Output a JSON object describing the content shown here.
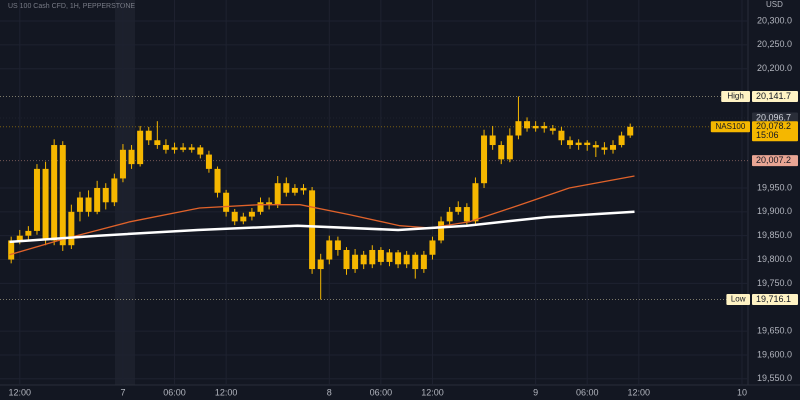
{
  "chart_data": {
    "type": "candlestick",
    "title": "US 100 Cash CFD, 1H, PEPPERSTONE",
    "currency": "USD",
    "color": "#f5b700",
    "xlim": [
      9.7,
      96.7
    ],
    "ylim": [
      19537,
      20344
    ],
    "grid": true,
    "xticks": [
      {
        "value": 12,
        "label": "12:00"
      },
      {
        "value": 24,
        "label": "7"
      },
      {
        "value": 30,
        "label": "06:00"
      },
      {
        "value": 36,
        "label": "12:00"
      },
      {
        "value": 48,
        "label": "8"
      },
      {
        "value": 54,
        "label": "06:00"
      },
      {
        "value": 60,
        "label": "12:00"
      },
      {
        "value": 72,
        "label": "9"
      },
      {
        "value": 78,
        "label": "06:00"
      },
      {
        "value": 84,
        "label": "12:00"
      },
      {
        "value": 96,
        "label": "10"
      }
    ],
    "yticks": [
      {
        "value": 20300,
        "label": "20,300.0"
      },
      {
        "value": 20250,
        "label": "20,250.0"
      },
      {
        "value": 20200,
        "label": "20,200.0"
      },
      {
        "value": 19950,
        "label": "19,950.0"
      },
      {
        "value": 19900,
        "label": "19,900.0"
      },
      {
        "value": 19850,
        "label": "19,850.0"
      },
      {
        "value": 19800,
        "label": "19,800.0"
      },
      {
        "value": 19750,
        "label": "19,750.0"
      },
      {
        "value": 19650,
        "label": "19,650.0"
      },
      {
        "value": 19600,
        "label": "19,600.0"
      },
      {
        "value": 19550,
        "label": "19,550.0"
      }
    ],
    "x": [
      11,
      12,
      13,
      14,
      15,
      16,
      17,
      18,
      19,
      20,
      21,
      22,
      23,
      24,
      25,
      26,
      27,
      28,
      29,
      30,
      31,
      32,
      33,
      34,
      35,
      36,
      37,
      38,
      39,
      40,
      41,
      42,
      43,
      44,
      45,
      46,
      47,
      48,
      49,
      50,
      51,
      52,
      53,
      54,
      55,
      56,
      57,
      58,
      59,
      60,
      61,
      62,
      63,
      64,
      65,
      66,
      67,
      68,
      69,
      70,
      71,
      72,
      73,
      74,
      75,
      76,
      77,
      78,
      79,
      80,
      81,
      82,
      83
    ],
    "open": [
      19800,
      19840,
      19850,
      19860,
      19990,
      19840,
      20040,
      19830,
      19900,
      19930,
      19900,
      19950,
      19920,
      19970,
      20030,
      20000,
      20070,
      20050,
      20040,
      20030,
      20035,
      20030,
      20035,
      20020,
      19990,
      19940,
      19900,
      19880,
      19890,
      19900,
      19920,
      19915,
      19960,
      19940,
      19950,
      19945,
      19780,
      19800,
      19840,
      19820,
      19780,
      19810,
      19790,
      19820,
      19795,
      19815,
      19790,
      19810,
      19780,
      19810,
      19840,
      19880,
      19900,
      19910,
      19880,
      19960,
      20060,
      20040,
      20010,
      20060,
      20090,
      20075,
      20080,
      20075,
      20070,
      20050,
      20040,
      20045,
      20040,
      20035,
      20030,
      20040,
      20060
    ],
    "high": [
      19848,
      19862,
      19870,
      20000,
      20005,
      20052,
      20048,
      19915,
      19942,
      19945,
      19965,
      19960,
      19980,
      20042,
      20040,
      20080,
      20078,
      20090,
      20052,
      20045,
      20044,
      20042,
      20040,
      20028,
      19995,
      19946,
      19906,
      19898,
      19908,
      19930,
      19930,
      19975,
      19972,
      19958,
      19958,
      19952,
      19812,
      19850,
      19848,
      19826,
      19822,
      19818,
      19830,
      19826,
      19822,
      19820,
      19818,
      19815,
      19818,
      19848,
      19890,
      19910,
      19922,
      19918,
      19972,
      20072,
      20080,
      20048,
      20075,
      20141.7,
      20098,
      20090,
      20088,
      20082,
      20078,
      20058,
      20052,
      20050,
      20048,
      20046,
      20050,
      20068,
      20085
    ],
    "low": [
      19792,
      19832,
      19840,
      19852,
      19830,
      19830,
      19818,
      19822,
      19880,
      19890,
      19895,
      19905,
      19912,
      19962,
      19990,
      19995,
      20040,
      20032,
      20022,
      20022,
      20025,
      20024,
      20012,
      19982,
      19930,
      19890,
      19872,
      19874,
      19882,
      19894,
      19905,
      19908,
      19932,
      19934,
      19936,
      19770,
      19716.1,
      19790,
      19808,
      19768,
      19772,
      19780,
      19782,
      19788,
      19786,
      19782,
      19782,
      19760,
      19772,
      19800,
      19834,
      19872,
      19894,
      19872,
      19874,
      19950,
      20030,
      20000,
      20004,
      20052,
      20068,
      20068,
      20066,
      20062,
      20040,
      20032,
      20030,
      20028,
      20015,
      20020,
      20022,
      20035,
      20055
    ],
    "close": [
      19840,
      19850,
      19860,
      19990,
      19840,
      20040,
      19830,
      19900,
      19930,
      19900,
      19950,
      19920,
      19970,
      20030,
      20000,
      20070,
      20050,
      20040,
      20030,
      20035,
      20030,
      20035,
      20020,
      19990,
      19940,
      19900,
      19880,
      19890,
      19900,
      19920,
      19915,
      19960,
      19940,
      19950,
      19945,
      19780,
      19800,
      19840,
      19820,
      19780,
      19810,
      19790,
      19820,
      19795,
      19815,
      19790,
      19810,
      19780,
      19810,
      19840,
      19880,
      19900,
      19910,
      19880,
      19960,
      20060,
      20040,
      20010,
      20060,
      20090,
      20075,
      20080,
      20075,
      20070,
      20050,
      20040,
      20045,
      20040,
      20035,
      20030,
      20040,
      20060,
      20078.2
    ],
    "lines": [
      {
        "color": "#e0622a",
        "x": [
          10.8,
          16.7,
          24.8,
          32.9,
          39.9,
          44.6,
          50.4,
          56.2,
          59.7,
          64.3,
          70.1,
          75.9,
          83.5
        ],
        "values": [
          19810,
          19841,
          19879,
          19908,
          19915,
          19915,
          19894,
          19871,
          19866,
          19879,
          19914,
          19950,
          19975
        ]
      },
      {
        "color": "#ffffff",
        "x": [
          10.8,
          21.1,
          32.7,
          44.3,
          56,
          64,
          73.3,
          83.5
        ],
        "values": [
          19837,
          19850,
          19862,
          19871,
          19862,
          19871,
          19889,
          19900
        ]
      }
    ],
    "price_markers": [
      {
        "tag": "High",
        "value": 20141.7,
        "label": "20,141.7",
        "color": "#fff3c4"
      },
      {
        "value": 20096.7,
        "label": "20,096.7",
        "color": "#2a2e39"
      },
      {
        "tag": "NAS100",
        "value": 20078.2,
        "label": "20,078.2",
        "countdown": "15:06",
        "color": "#f5b700"
      },
      {
        "value": 20007.2,
        "label": "20,007.2",
        "color": "#e9a594"
      },
      {
        "tag": "Low",
        "value": 19716.1,
        "label": "19,716.1",
        "color": "#fff3c4"
      }
    ]
  }
}
